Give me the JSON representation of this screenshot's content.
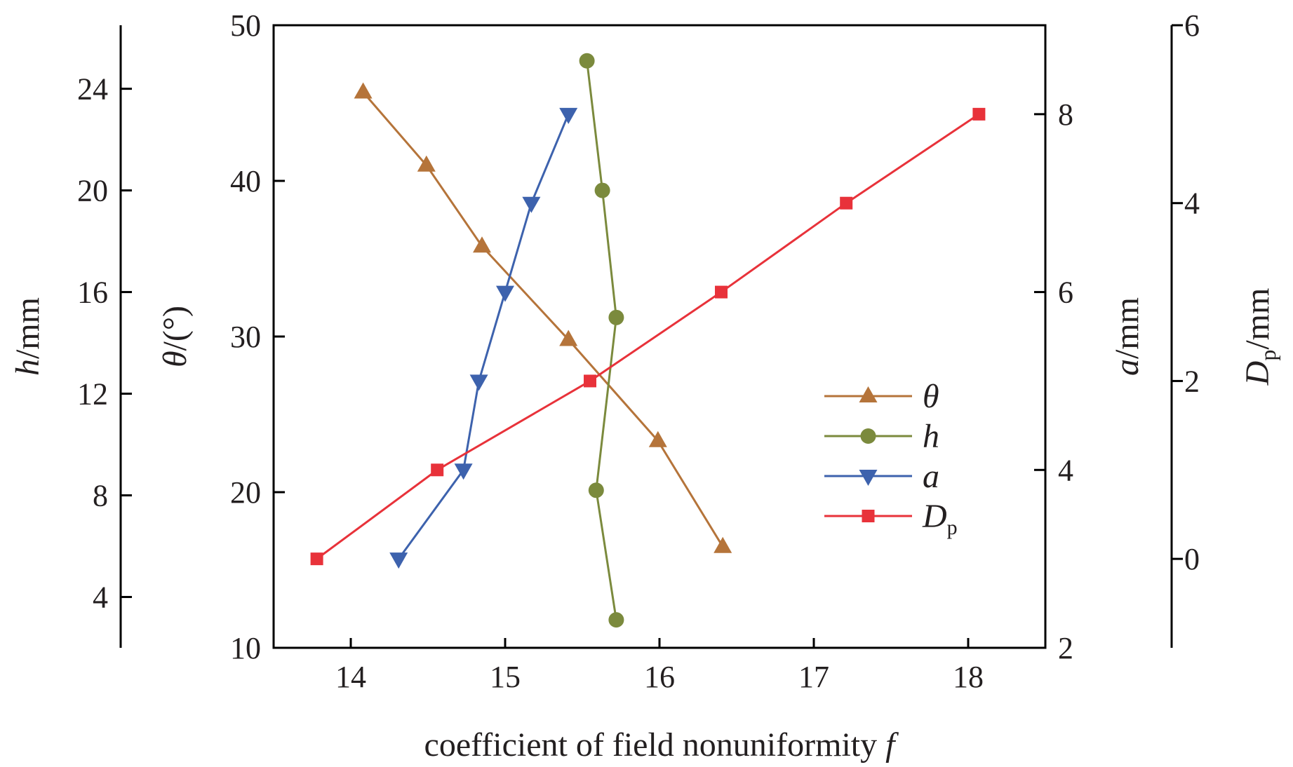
{
  "chart_data": {
    "type": "line",
    "xlabel": "coefficient of field nonuniformity",
    "xlabel_var": "f",
    "xlim": [
      13.5,
      18.5
    ],
    "x_ticks": [
      "14",
      "15",
      "16",
      "17",
      "18"
    ],
    "axes": {
      "theta": {
        "label_var": "θ",
        "label_unit": "/(°)",
        "lim": [
          10,
          50
        ],
        "ticks": [
          "10",
          "20",
          "30",
          "40",
          "50"
        ],
        "side": "left-inner"
      },
      "h": {
        "label_var": "h",
        "label_unit": "/mm",
        "lim": [
          2,
          26.5
        ],
        "ticks": [
          "4",
          "8",
          "12",
          "16",
          "20",
          "24"
        ],
        "side": "left-outer"
      },
      "a": {
        "label_var": "a",
        "label_unit": "/mm",
        "lim": [
          2,
          9
        ],
        "ticks": [
          "2",
          "4",
          "6",
          "8"
        ],
        "side": "right-inner"
      },
      "Dp": {
        "label_var": "D",
        "label_sub": "p",
        "label_unit": "/mm",
        "lim": [
          -1,
          6
        ],
        "ticks": [
          "0",
          "2",
          "4",
          "6"
        ],
        "side": "right-outer"
      }
    },
    "series": [
      {
        "name": "θ",
        "name_sub": "",
        "axis": "theta",
        "color": "#b5743a",
        "marker": "triangle-up",
        "x": [
          14.08,
          14.49,
          14.85,
          15.41,
          15.99,
          16.41
        ],
        "y": [
          45.7,
          41.0,
          35.8,
          29.8,
          23.3,
          16.5
        ]
      },
      {
        "name": "h",
        "name_sub": "",
        "axis": "h",
        "color": "#7b8a3d",
        "marker": "circle",
        "x": [
          15.53,
          15.63,
          15.72,
          15.59,
          15.72
        ],
        "y": [
          25.1,
          20.0,
          15.0,
          8.2,
          3.1
        ]
      },
      {
        "name": "a",
        "name_sub": "",
        "axis": "a",
        "color": "#3d62ad",
        "marker": "triangle-down",
        "x": [
          14.31,
          14.73,
          14.83,
          15.0,
          15.17,
          15.41
        ],
        "y": [
          3.0,
          4.0,
          5.0,
          6.0,
          7.0,
          8.0
        ]
      },
      {
        "name": "D",
        "name_sub": "p",
        "axis": "Dp",
        "color": "#e8323a",
        "marker": "square",
        "x": [
          13.78,
          14.56,
          15.55,
          16.4,
          17.21,
          18.07
        ],
        "y": [
          0.0,
          1.0,
          2.0,
          3.0,
          4.0,
          5.0
        ]
      }
    ],
    "legend": {
      "position": "right-center"
    }
  }
}
